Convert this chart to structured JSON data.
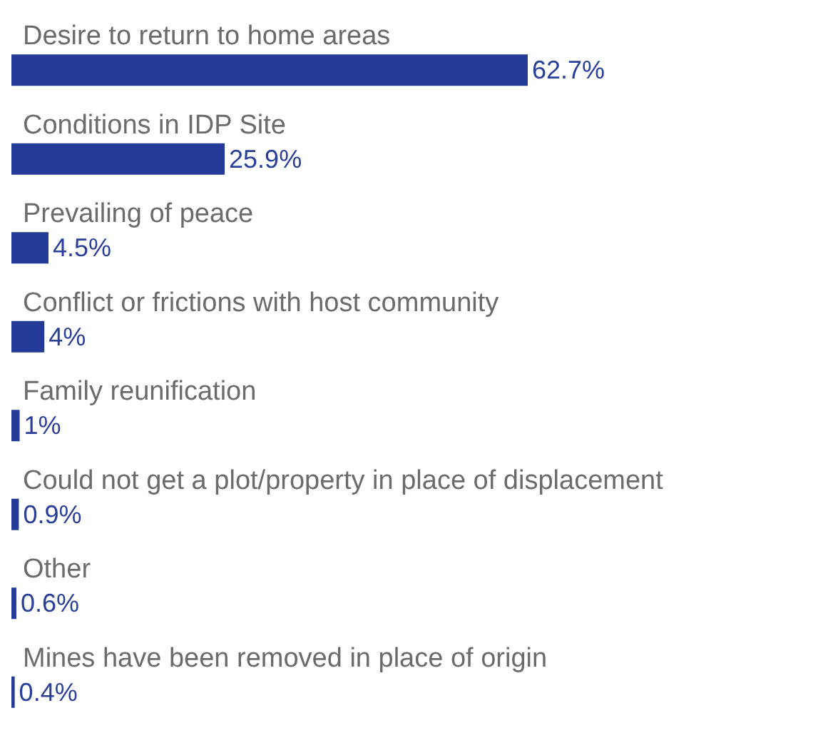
{
  "chart_data": {
    "type": "bar",
    "orientation": "horizontal",
    "categories": [
      "Desire to return to home areas",
      "Conditions in IDP Site",
      "Prevailing of peace",
      "Conflict or frictions with host community",
      "Family reunification",
      "Could not get a plot/property in place of displacement",
      "Other",
      "Mines have been removed in place of origin"
    ],
    "values": [
      62.7,
      25.9,
      4.5,
      4,
      1,
      0.9,
      0.6,
      0.4
    ],
    "value_labels": [
      "62.7%",
      "25.9%",
      "4.5%",
      "4%",
      "1%",
      "0.9%",
      "0.6%",
      "0.4%"
    ],
    "color": "#233a96"
  }
}
